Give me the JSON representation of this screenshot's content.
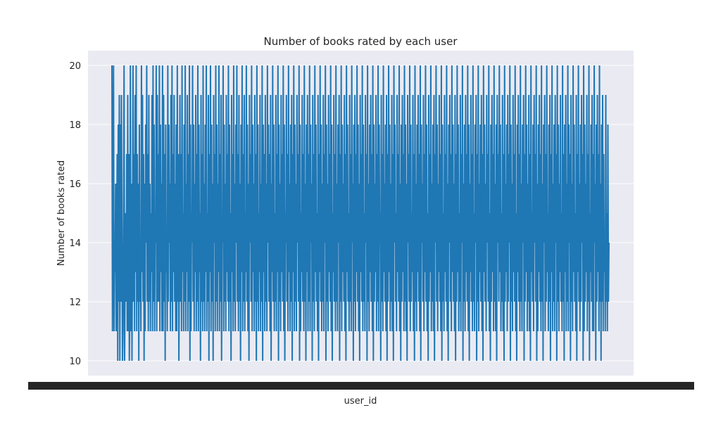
{
  "chart_data": {
    "type": "line",
    "title": "Number of books rated by each user",
    "xlabel": "user_id",
    "ylabel": "Number of books rated",
    "ylim": [
      9.5,
      20.5
    ],
    "yticks": [
      10,
      12,
      14,
      16,
      18,
      20
    ],
    "grid": true,
    "legend": "none",
    "x_tick_labels_overlapping": true,
    "series": [
      {
        "color": "#1f77b4",
        "values": [
          20,
          11,
          15,
          20,
          11,
          14,
          13,
          16,
          11,
          14,
          17,
          10,
          18,
          12,
          19,
          10,
          18,
          12,
          19,
          14,
          10,
          11,
          15,
          20,
          10,
          13,
          15,
          12,
          17,
          11,
          19,
          11,
          17,
          10,
          12,
          20,
          11,
          16,
          10,
          14,
          20,
          12,
          17,
          11,
          19,
          13,
          20,
          11,
          17,
          12,
          16,
          10,
          18,
          12,
          14,
          11,
          20,
          13,
          19,
          12,
          17,
          10,
          16,
          11,
          18,
          14,
          20,
          12,
          17,
          11,
          19,
          12,
          16,
          11,
          15,
          13,
          19,
          11,
          20,
          12,
          18,
          11,
          15,
          14,
          20,
          11,
          19,
          12,
          17,
          12,
          20,
          11,
          18,
          13,
          16,
          11,
          20,
          11,
          19,
          12,
          17,
          10,
          18,
          13,
          14,
          11,
          20,
          12,
          18,
          14,
          16,
          11,
          19,
          12,
          20,
          11,
          17,
          13,
          19,
          12,
          16,
          11,
          18,
          11,
          20,
          12,
          17,
          10,
          14,
          19,
          12,
          17,
          11,
          20,
          13,
          15,
          11,
          18,
          12,
          20,
          11,
          16,
          13,
          19,
          11,
          17,
          12,
          20,
          10,
          18,
          11,
          15,
          14,
          20,
          12,
          18,
          11,
          16,
          13,
          19,
          11,
          17,
          12,
          20,
          11,
          18,
          13,
          15,
          10,
          19,
          12,
          17,
          11,
          20,
          12,
          16,
          11,
          18,
          13,
          20,
          11,
          15,
          12,
          19,
          10,
          17,
          13,
          20,
          11,
          18,
          12,
          16,
          10,
          19,
          14,
          17,
          11,
          20,
          12,
          18,
          11,
          16,
          13,
          20,
          11,
          17,
          12,
          19,
          10,
          15,
          14,
          20,
          11,
          18,
          12,
          16,
          11,
          19,
          13,
          17,
          12,
          20,
          11,
          18,
          12,
          15,
          10,
          19,
          13,
          17,
          11,
          20,
          12,
          16,
          11,
          18,
          14,
          20,
          12,
          17,
          11,
          19,
          12,
          16,
          10,
          18,
          13,
          20,
          11,
          17,
          12,
          19,
          11,
          15,
          13,
          20,
          12,
          18,
          11,
          16,
          10,
          19,
          14,
          17,
          12,
          20,
          11,
          18,
          13,
          16,
          11,
          19,
          12,
          17,
          10,
          20,
          12,
          18,
          11,
          15,
          13,
          19,
          11,
          16,
          12,
          20,
          10,
          18,
          13,
          17,
          11,
          19,
          12,
          16,
          11,
          20,
          14,
          18,
          12,
          17,
          11,
          19,
          10,
          16,
          13,
          20,
          12,
          18,
          11,
          15,
          12,
          19,
          11,
          17,
          13,
          20,
          10,
          18,
          12,
          16,
          11,
          19,
          13,
          17,
          12,
          20,
          11,
          18,
          10,
          15,
          14,
          19,
          12,
          17,
          11,
          20,
          13,
          16,
          11,
          18,
          12,
          19,
          10,
          17,
          13,
          20,
          11,
          18,
          12,
          16,
          11,
          19,
          14,
          17,
          12,
          20,
          10,
          18,
          11,
          15,
          13,
          19,
          12,
          17,
          11,
          20,
          12,
          16,
          10,
          18,
          13,
          19,
          11,
          17,
          12,
          20,
          11,
          18,
          14,
          16,
          10,
          19,
          12,
          17,
          11,
          20,
          13,
          18,
          12,
          15,
          11,
          19,
          10,
          17,
          13,
          20,
          12,
          18,
          11,
          16,
          12,
          19,
          11,
          17,
          14,
          20,
          10,
          18,
          12,
          16,
          11,
          19,
          13,
          17,
          12,
          20,
          11,
          18,
          10,
          15,
          13,
          19,
          12,
          17,
          11,
          20,
          12,
          16,
          11,
          18,
          14,
          19,
          10,
          17,
          12,
          20,
          11,
          18,
          13,
          16,
          12,
          19,
          11,
          17,
          10,
          20,
          13,
          18,
          12,
          15,
          11,
          19,
          12,
          17,
          11,
          20,
          14,
          16,
          10,
          18,
          12,
          19,
          11,
          17,
          13,
          20,
          12,
          18,
          11,
          16,
          10,
          19,
          13,
          17,
          12,
          20,
          11,
          18,
          12,
          15,
          11,
          19,
          14,
          17,
          10,
          20,
          12,
          16,
          11,
          18,
          13,
          19,
          12,
          17,
          11,
          20,
          10,
          18,
          12,
          16,
          13,
          19,
          11,
          17,
          12,
          20,
          11,
          18,
          14,
          15,
          10,
          19,
          12,
          17,
          11,
          20,
          13,
          16,
          12,
          18,
          11,
          19,
          10,
          17,
          12,
          20,
          13,
          18,
          11,
          16,
          12,
          19,
          11,
          17,
          10,
          20,
          14,
          18,
          12,
          15,
          11,
          19,
          13,
          17,
          12,
          20,
          11,
          16,
          10,
          18,
          12,
          19,
          13,
          17,
          11,
          20,
          12,
          18,
          11,
          16,
          10,
          19,
          14,
          17,
          12,
          20,
          11,
          18,
          12,
          15,
          13,
          19,
          11,
          17,
          10,
          20,
          12,
          16,
          11,
          18,
          13,
          19,
          12,
          17,
          11,
          20,
          10,
          18,
          14,
          16,
          12,
          19,
          11,
          17,
          13,
          20,
          12,
          18,
          11,
          15,
          10,
          19,
          12,
          17,
          13,
          20,
          11,
          16,
          12,
          18,
          11,
          19,
          10,
          17,
          14,
          20,
          12,
          18,
          11,
          16,
          13,
          19,
          12,
          17,
          11,
          20,
          10,
          18,
          12,
          15,
          11,
          19,
          13,
          17,
          12,
          20,
          11,
          16,
          10,
          18,
          14,
          19,
          12,
          17,
          11,
          20,
          13,
          18,
          12,
          16,
          11,
          19,
          10,
          17,
          12,
          20,
          13,
          18,
          11,
          15,
          12,
          19,
          11,
          17,
          14,
          20,
          10,
          16,
          12,
          18,
          11,
          19,
          13,
          17,
          12,
          20,
          11,
          18,
          10,
          16,
          13,
          19,
          12,
          17,
          11,
          20,
          12,
          15,
          11,
          18,
          14,
          19,
          10,
          17,
          12,
          20,
          11,
          16,
          13,
          18,
          12,
          19,
          11,
          17,
          10,
          20,
          13,
          18,
          12,
          16,
          11,
          19,
          14,
          17,
          12,
          20,
          11,
          15,
          10,
          18,
          12,
          19,
          13,
          17,
          11,
          20,
          12,
          16,
          11,
          18,
          10,
          19,
          14,
          17,
          12,
          20,
          13,
          18,
          11,
          15,
          12,
          19,
          11,
          17,
          10,
          20,
          12,
          16,
          13,
          18,
          11,
          19,
          12,
          17,
          14,
          20,
          10,
          18,
          12,
          16,
          11,
          19,
          13,
          17,
          12,
          20,
          11,
          15,
          10,
          18,
          13,
          19,
          12,
          17,
          11,
          20,
          12,
          16,
          11,
          18,
          14,
          19,
          10,
          17,
          12,
          20,
          13,
          18,
          11,
          16,
          12,
          19,
          11,
          17,
          10,
          20,
          13,
          15,
          12,
          18,
          11,
          19,
          14,
          17,
          12,
          20,
          10,
          16,
          11,
          18,
          13,
          19,
          12,
          17,
          11,
          20,
          12,
          16,
          10,
          18,
          14,
          19,
          11,
          17,
          12,
          20,
          13,
          15,
          11,
          18,
          12,
          19,
          10,
          17,
          13,
          20,
          11,
          16,
          12,
          18,
          11,
          19,
          14,
          17,
          10,
          20,
          12,
          18,
          11,
          16,
          13,
          19,
          12,
          15,
          11,
          20,
          12,
          17,
          10,
          18,
          13,
          19,
          11,
          16,
          12,
          20,
          11,
          18,
          14,
          17,
          10,
          19,
          12,
          16,
          11,
          20,
          13,
          18,
          12,
          15,
          11,
          19,
          10,
          17,
          13,
          20,
          12,
          16,
          11,
          18,
          12,
          19,
          14,
          17,
          10,
          20,
          11,
          18,
          12,
          16,
          13,
          19,
          11,
          17,
          12,
          20,
          10,
          15,
          13,
          18,
          12,
          19,
          11,
          17,
          11,
          20,
          14,
          16,
          10,
          18,
          12,
          19,
          13,
          17,
          11,
          20,
          12,
          16,
          10,
          18,
          12,
          19,
          11,
          17,
          13,
          14,
          11,
          19,
          12,
          15,
          11,
          18,
          12,
          14
        ]
      }
    ]
  }
}
